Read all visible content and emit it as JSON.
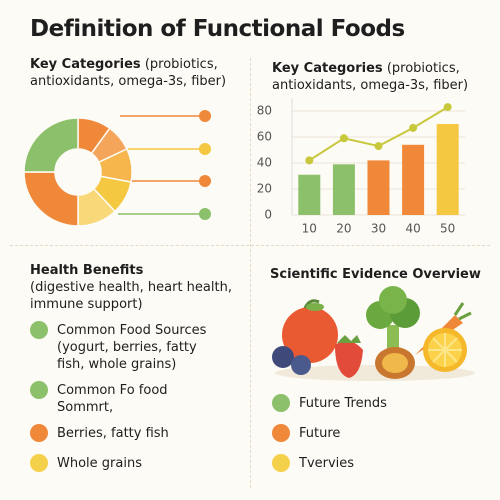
{
  "header": {
    "title": "Definition of Functional Foods"
  },
  "chart_data": [
    {
      "type": "pie",
      "title": "Key Categories",
      "subtitle": "(probiotics, antioxidants, omega-3s, fiber)",
      "values": [
        10,
        8,
        10,
        10,
        12,
        25,
        25
      ],
      "colors": [
        "#f0883a",
        "#f5a55a",
        "#f6b64c",
        "#f5c842",
        "#f8d878",
        "#f0883a",
        "#8cc06a"
      ],
      "donut": true
    },
    {
      "type": "bar",
      "title": "Key Categories",
      "subtitle": "(probiotics, antioxidants, omega-3s, fiber)",
      "categories": [
        "10",
        "20",
        "30",
        "40",
        "50"
      ],
      "values": [
        31,
        39,
        42,
        54,
        70
      ],
      "colors": [
        "#8cc06a",
        "#8cc06a",
        "#f0883a",
        "#f0883a",
        "#f5c842"
      ],
      "line_values": [
        42,
        59,
        53,
        67,
        83
      ],
      "line_color": "#c8c83c",
      "ylim": [
        0,
        90
      ],
      "yticks": [
        0,
        20,
        40,
        60,
        80
      ],
      "grid": true
    }
  ],
  "health": {
    "title": "Health Benefits",
    "subtitle": "(digestive health, heart health, immune support)",
    "items": [
      {
        "label": "Common Food Sources (yogurt, berries, fatty fish, whole grains)",
        "color": "#8cc06a"
      },
      {
        "label": "Common Fo food Sommrt,",
        "color": "#8cc06a"
      },
      {
        "label": "Berries,  fatty fish",
        "color": "#f0883a"
      },
      {
        "label": "Whole grains",
        "color": "#f5d04a"
      }
    ]
  },
  "evidence": {
    "title": "Scientific Evidence Overview",
    "items": [
      {
        "label": "Future Trends",
        "color": "#8cc06a"
      },
      {
        "label": "Future",
        "color": "#f0883a"
      },
      {
        "label": "Tvervies",
        "color": "#f5d04a"
      }
    ]
  }
}
